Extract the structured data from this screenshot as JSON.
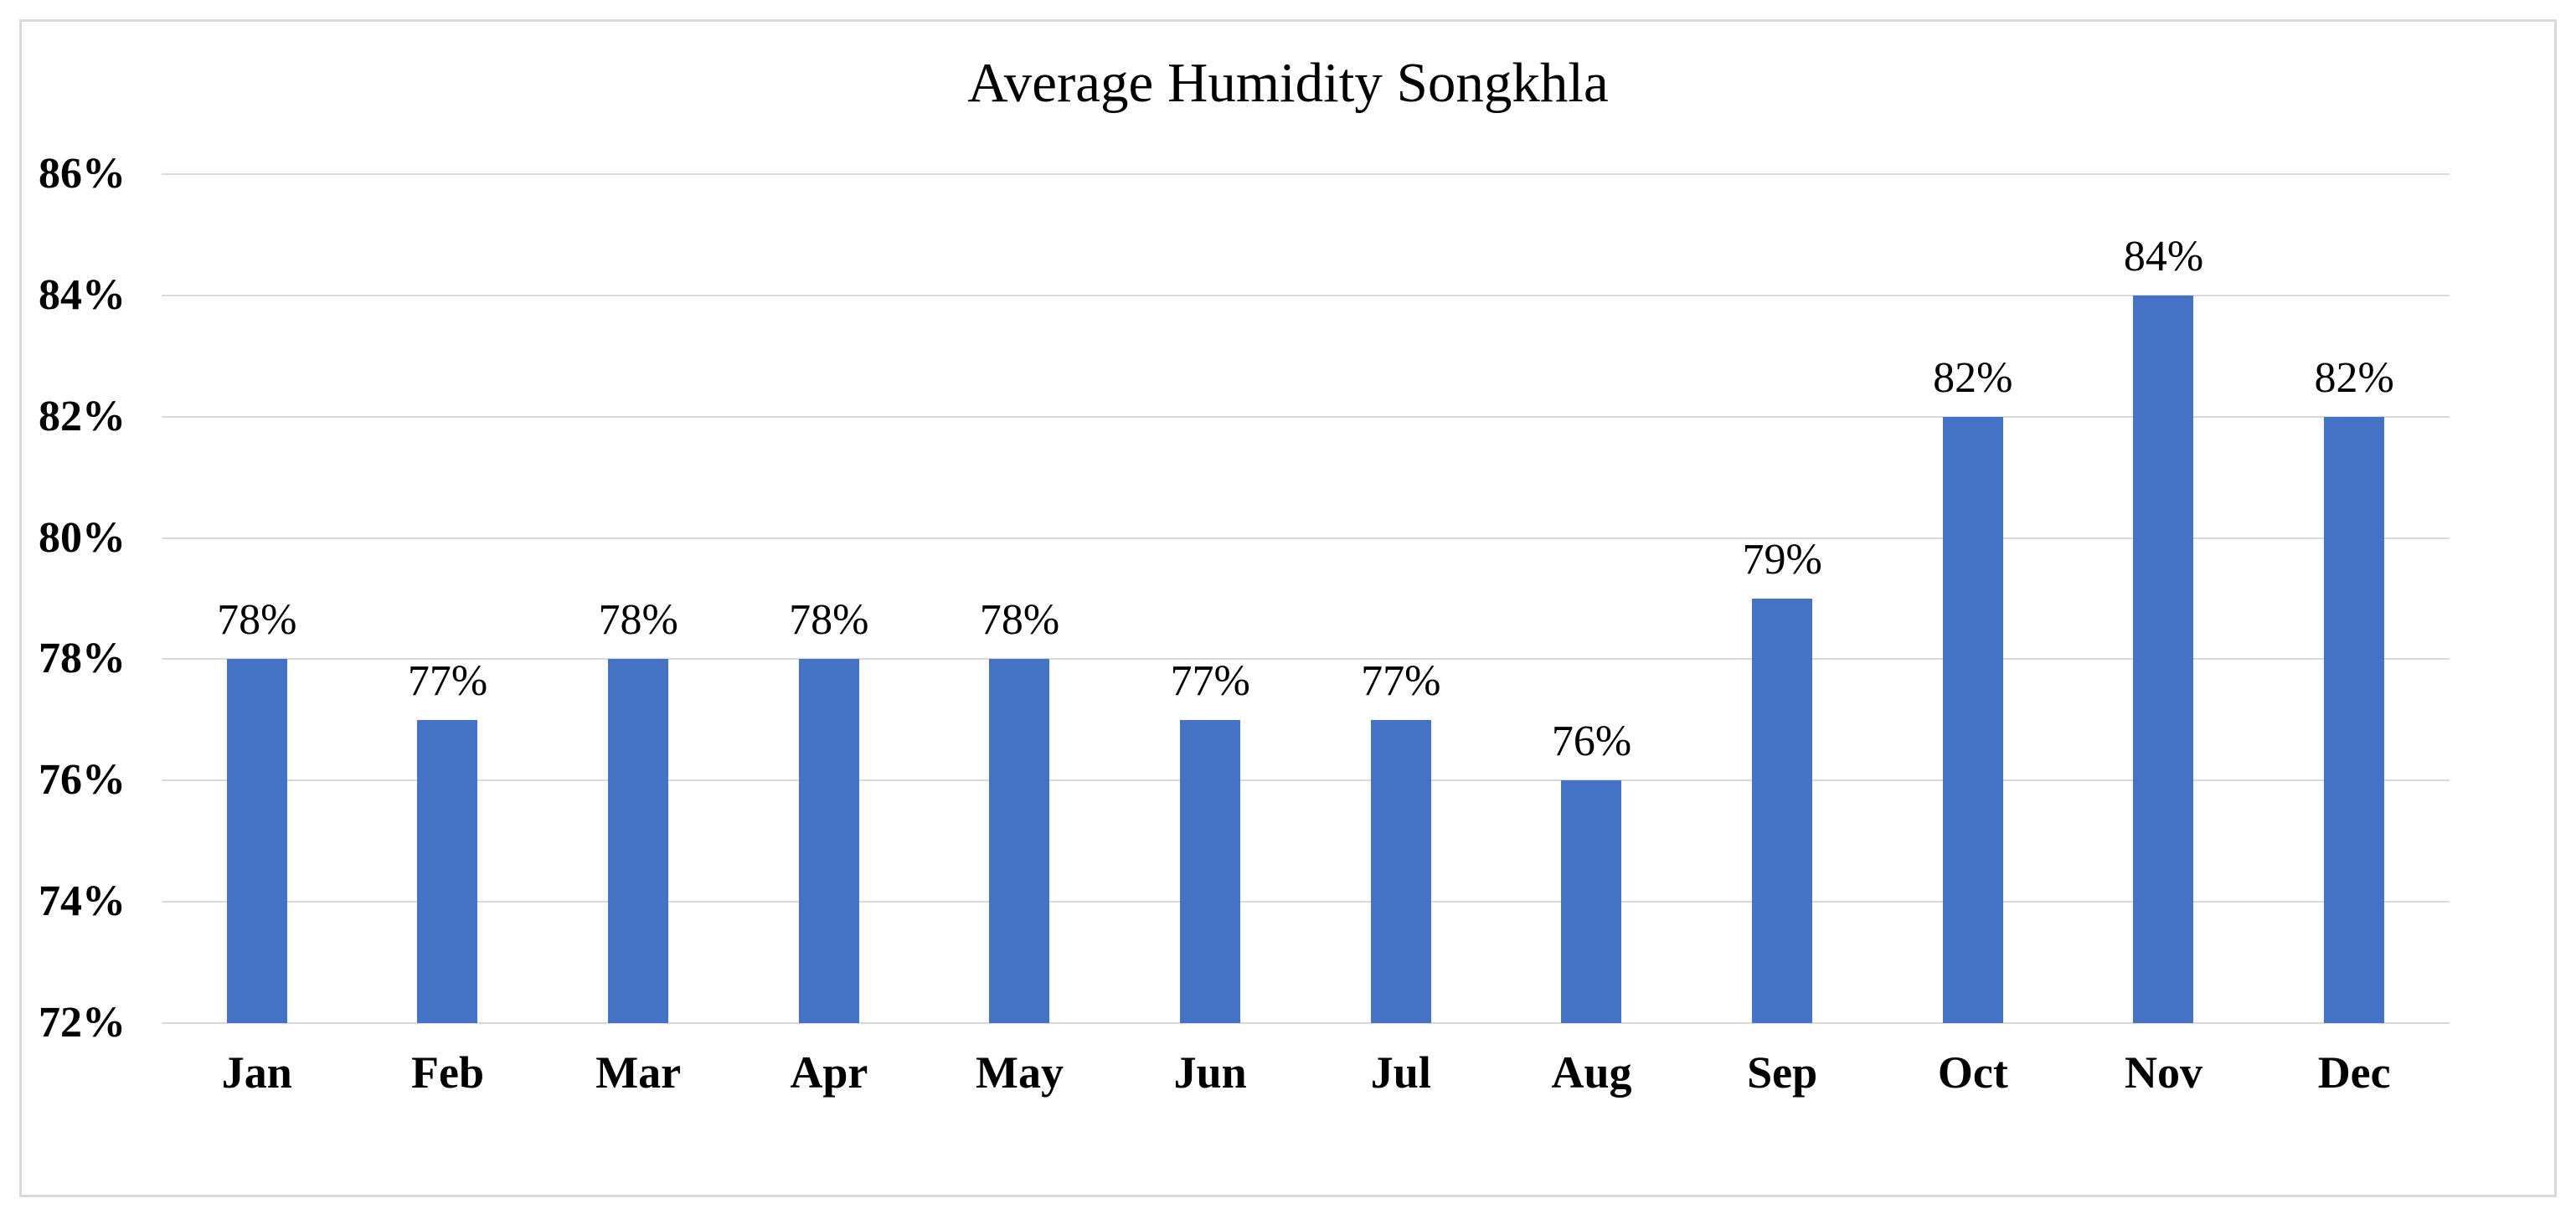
{
  "figure": {
    "background": "#ffffff",
    "border_color": "#d9d9d9"
  },
  "chart_data": {
    "type": "bar",
    "title": "Average Humidity Songkhla",
    "categories": [
      "Jan",
      "Feb",
      "Mar",
      "Apr",
      "May",
      "Jun",
      "Jul",
      "Aug",
      "Sep",
      "Oct",
      "Nov",
      "Dec"
    ],
    "values": [
      78,
      77,
      78,
      78,
      78,
      77,
      77,
      76,
      79,
      82,
      84,
      82
    ],
    "data_labels": [
      "78%",
      "77%",
      "78%",
      "78%",
      "78%",
      "77%",
      "77%",
      "76%",
      "79%",
      "82%",
      "84%",
      "82%"
    ],
    "unit": "%",
    "xlabel": "",
    "ylabel": "",
    "ylim": [
      72,
      86
    ],
    "ytick_step": 2,
    "ytick_labels": [
      "86%",
      "84%",
      "82%",
      "80%",
      "78%",
      "76%",
      "74%",
      "72%"
    ],
    "grid": "horizontal",
    "legend": "none",
    "bar_color": "#4472c4",
    "gridline_color": "#d9d9d9",
    "axis_line_color": "#d9d9d9",
    "text_color": "#000000"
  }
}
